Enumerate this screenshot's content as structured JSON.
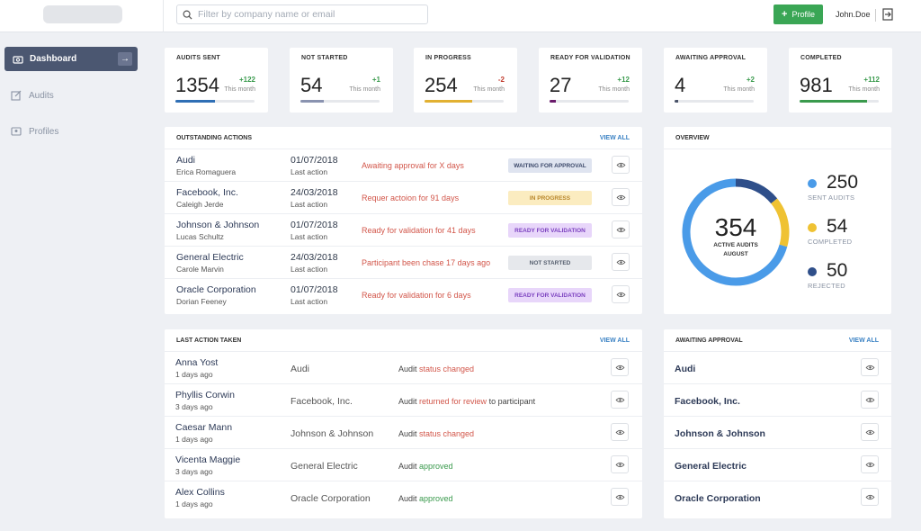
{
  "topbar": {
    "search_placeholder": "Filter by company name or email",
    "profile_button": "Profile",
    "username": "John.Doe"
  },
  "sidebar": {
    "items": [
      {
        "label": "Dashboard",
        "active": true
      },
      {
        "label": "Audits"
      },
      {
        "label": "Profiles"
      }
    ]
  },
  "stats": [
    {
      "label": "AUDITS SENT",
      "value": "1354",
      "delta": "+122",
      "sub": "This month",
      "progress": 0.5,
      "color": "#2f6fb5"
    },
    {
      "label": "NOT STARTED",
      "value": "54",
      "delta": "+1",
      "sub": "This month",
      "progress": 0.3,
      "color": "#8a93b0"
    },
    {
      "label": "IN PROGRESS",
      "value": "254",
      "delta": "-2",
      "sub": "This month",
      "progress": 0.6,
      "color": "#e2b132"
    },
    {
      "label": "READY FOR VALIDATION",
      "value": "27",
      "delta": "+12",
      "sub": "This month",
      "progress": 0.08,
      "color": "#6a1b6b"
    },
    {
      "label": "AWAITING APPROVAL",
      "value": "4",
      "delta": "+2",
      "sub": "This month",
      "progress": 0.04,
      "color": "#4a5368"
    },
    {
      "label": "COMPLETED",
      "value": "981",
      "delta": "+112",
      "sub": "This month",
      "progress": 0.85,
      "color": "#3a9a4d"
    }
  ],
  "outstanding": {
    "title": "OUTSTANDING ACTIONS",
    "view_all": "VIEW ALL",
    "rows": [
      {
        "company": "Audi",
        "person": "Erica Romaguera",
        "date": "01/07/2018",
        "date_sub": "Last action",
        "message": "Awaiting approval for X days",
        "badge": "WAITING FOR APPROVAL"
      },
      {
        "company": "Facebook, Inc.",
        "person": "Caleigh Jerde",
        "date": "24/03/2018",
        "date_sub": "Last action",
        "message": "Requer actoion for 91 days",
        "badge": "IN PROGRESS"
      },
      {
        "company": "Johnson & Johnson",
        "person": "Lucas Schultz",
        "date": "01/07/2018",
        "date_sub": "Last action",
        "message": "Ready for validation for 41 days",
        "badge": "READY FOR VALIDATION"
      },
      {
        "company": "General Electric",
        "person": "Carole Marvin",
        "date": "24/03/2018",
        "date_sub": "Last action",
        "message": "Participant been chase 17 days ago",
        "badge": "NOT STARTED"
      },
      {
        "company": "Oracle Corporation",
        "person": "Dorian Feeney",
        "date": "01/07/2018",
        "date_sub": "Last action",
        "message": "Ready for validation for 6 days",
        "badge": "READY FOR VALIDATION"
      }
    ],
    "badge_colors": {
      "WAITING FOR APPROVAL": {
        "bg": "#dfe4f0",
        "fg": "#3d4a6b"
      },
      "IN PROGRESS": {
        "bg": "#fbecc0",
        "fg": "#b8862a"
      },
      "READY FOR VALIDATION": {
        "bg": "#e8d6fa",
        "fg": "#7a3fbf"
      },
      "NOT STARTED": {
        "bg": "#e6e8ec",
        "fg": "#555e6e"
      }
    }
  },
  "overview": {
    "title": "OVERVIEW",
    "center_value": "354",
    "center_label_1": "ACTIVE AUDITS",
    "center_label_2": "AUGUST",
    "legend": [
      {
        "value": "250",
        "label": "SENT AUDITS",
        "color": "#4a9be8"
      },
      {
        "value": "54",
        "label": "COMPLETED",
        "color": "#efc233"
      },
      {
        "value": "50",
        "label": "REJECTED",
        "color": "#2f4f8a"
      }
    ]
  },
  "last_action": {
    "title": "LAST ACTION TAKEN",
    "view_all": "VIEW ALL",
    "rows": [
      {
        "person": "Anna Yost",
        "time": "1 days ago",
        "company": "Audi",
        "prefix": "Audit ",
        "action": "status changed",
        "suffix": "",
        "tone": "o"
      },
      {
        "person": "Phyllis Corwin",
        "time": "3 days ago",
        "company": "Facebook, Inc.",
        "prefix": "Audit ",
        "action": "returned for review",
        "suffix": " to participant",
        "tone": "o"
      },
      {
        "person": "Caesar Mann",
        "time": "1 days ago",
        "company": "Johnson & Johnson",
        "prefix": "Audit ",
        "action": "status changed",
        "suffix": "",
        "tone": "o"
      },
      {
        "person": "Vicenta Maggie",
        "time": "3 days ago",
        "company": "General Electric",
        "prefix": "Audit ",
        "action": "approved",
        "suffix": "",
        "tone": "g"
      },
      {
        "person": "Alex Collins",
        "time": "1 days ago",
        "company": "Oracle Corporation",
        "prefix": "Audit ",
        "action": "approved",
        "suffix": "",
        "tone": "g"
      }
    ]
  },
  "awaiting": {
    "title": "AWAITING APPROVAL",
    "view_all": "VIEW ALL",
    "rows": [
      "Audi",
      "Facebook, Inc.",
      "Johnson & Johnson",
      "General Electric",
      "Oracle Corporation"
    ]
  }
}
